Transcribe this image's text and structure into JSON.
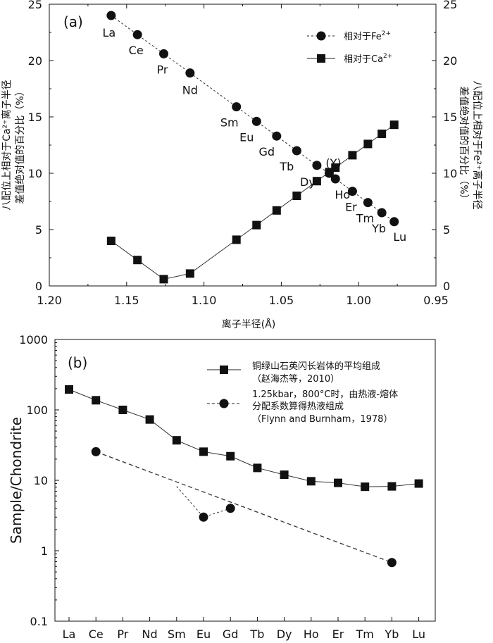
{
  "chart_data": [
    {
      "type": "line",
      "panel_label": "(a)",
      "xlabel": "离子半径(Å)",
      "ylabel_left": [
        "八配位上相对于Ca²⁺离子半径",
        "差值绝对值的百分比（%）"
      ],
      "ylabel_right": [
        "八配位上相对于Fe²⁺离子半径",
        "差值绝对值的百分比（%）"
      ],
      "xlim": [
        1.2,
        0.95
      ],
      "ylim": [
        0,
        25
      ],
      "x_ticks": [
        "1.20",
        "1.15",
        "1.10",
        "1.05",
        "1.00",
        "0.95"
      ],
      "y_ticks": [
        "0",
        "5",
        "10",
        "15",
        "20",
        "25"
      ],
      "series": [
        {
          "name": "相对于Fe²⁺",
          "legend_text": "相对于Fe",
          "legend_sup": "2+",
          "marker": "circle",
          "line": "dashed",
          "points": [
            {
              "label": "La",
              "x": 1.16,
              "y": 24.0
            },
            {
              "label": "Ce",
              "x": 1.143,
              "y": 22.3
            },
            {
              "label": "Pr",
              "x": 1.126,
              "y": 20.6
            },
            {
              "label": "Nd",
              "x": 1.109,
              "y": 18.9
            },
            {
              "label": "Sm",
              "x": 1.079,
              "y": 15.9
            },
            {
              "label": "Eu",
              "x": 1.066,
              "y": 14.6
            },
            {
              "label": "Gd",
              "x": 1.053,
              "y": 13.3
            },
            {
              "label": "Tb",
              "x": 1.04,
              "y": 12.0
            },
            {
              "label": "Dy",
              "x": 1.027,
              "y": 10.7
            },
            {
              "label": "(Y)",
              "x": 1.019,
              "y": 10.0
            },
            {
              "label": "Ho",
              "x": 1.015,
              "y": 9.5
            },
            {
              "label": "Er",
              "x": 1.004,
              "y": 8.4
            },
            {
              "label": "Tm",
              "x": 0.994,
              "y": 7.4
            },
            {
              "label": "Yb",
              "x": 0.985,
              "y": 6.5
            },
            {
              "label": "Lu",
              "x": 0.977,
              "y": 5.7
            }
          ]
        },
        {
          "name": "相对于Ca²⁺",
          "legend_text": "相对于Ca",
          "legend_sup": "2+",
          "marker": "square",
          "line": "solid",
          "points": [
            {
              "x": 1.16,
              "y": 4.0
            },
            {
              "x": 1.143,
              "y": 2.3
            },
            {
              "x": 1.126,
              "y": 0.6
            },
            {
              "x": 1.109,
              "y": 1.1
            },
            {
              "x": 1.079,
              "y": 4.1
            },
            {
              "x": 1.066,
              "y": 5.4
            },
            {
              "x": 1.053,
              "y": 6.7
            },
            {
              "x": 1.04,
              "y": 8.0
            },
            {
              "x": 1.027,
              "y": 9.3
            },
            {
              "x": 1.019,
              "y": 10.1
            },
            {
              "x": 1.015,
              "y": 10.5
            },
            {
              "x": 1.004,
              "y": 11.6
            },
            {
              "x": 0.994,
              "y": 12.6
            },
            {
              "x": 0.985,
              "y": 13.5
            },
            {
              "x": 0.977,
              "y": 14.3
            }
          ]
        }
      ],
      "point_labels": [
        "La",
        "Ce",
        "Pr",
        "Nd",
        "Sm",
        "Eu",
        "Gd",
        "Tb",
        "(Y)",
        "Dy",
        "Ho",
        "Er",
        "Tm",
        "Yb",
        "Lu"
      ]
    },
    {
      "type": "line",
      "panel_label": "(b)",
      "ylabel": "Sample/Chondrite",
      "yscale": "log",
      "ylim": [
        0.1,
        1000
      ],
      "y_ticks": [
        "0.1",
        "1",
        "10",
        "100",
        "1000"
      ],
      "categories": [
        "La",
        "Ce",
        "Pr",
        "Nd",
        "Sm",
        "Eu",
        "Gd",
        "Tb",
        "Dy",
        "Ho",
        "Er",
        "Tm",
        "Yb",
        "Lu"
      ],
      "series": [
        {
          "name": "铜绿山石英闪长岩体的平均组成（赵海杰等，2010）",
          "legend_lines": [
            "铜绿山石英闪长岩体的平均组成",
            "（赵海杰等，2010）"
          ],
          "marker": "square",
          "line": "solid",
          "values": [
            195,
            137,
            100,
            73,
            37,
            25.5,
            22,
            15,
            12,
            9.7,
            9.2,
            8.1,
            8.2,
            9.0
          ]
        },
        {
          "name": "1.25kbar，800°C时，由热液-熔体分配系数算得热液组成（Flynn and Burnham，1978）",
          "legend_lines": [
            "1.25kbar，800°C时，由热液-熔体",
            "分配系数算得热液组成",
            "（Flynn and Burnham，1978）"
          ],
          "marker": "circle",
          "line": "dashed",
          "values": [
            null,
            25.5,
            null,
            null,
            null,
            3.0,
            4.0,
            null,
            null,
            null,
            null,
            null,
            0.68,
            null
          ],
          "trend": [
            {
              "category": "Ce",
              "value": 25.5
            },
            {
              "category": "Yb",
              "value": 0.68
            }
          ],
          "interpolated_sm": 8.2
        }
      ]
    }
  ]
}
